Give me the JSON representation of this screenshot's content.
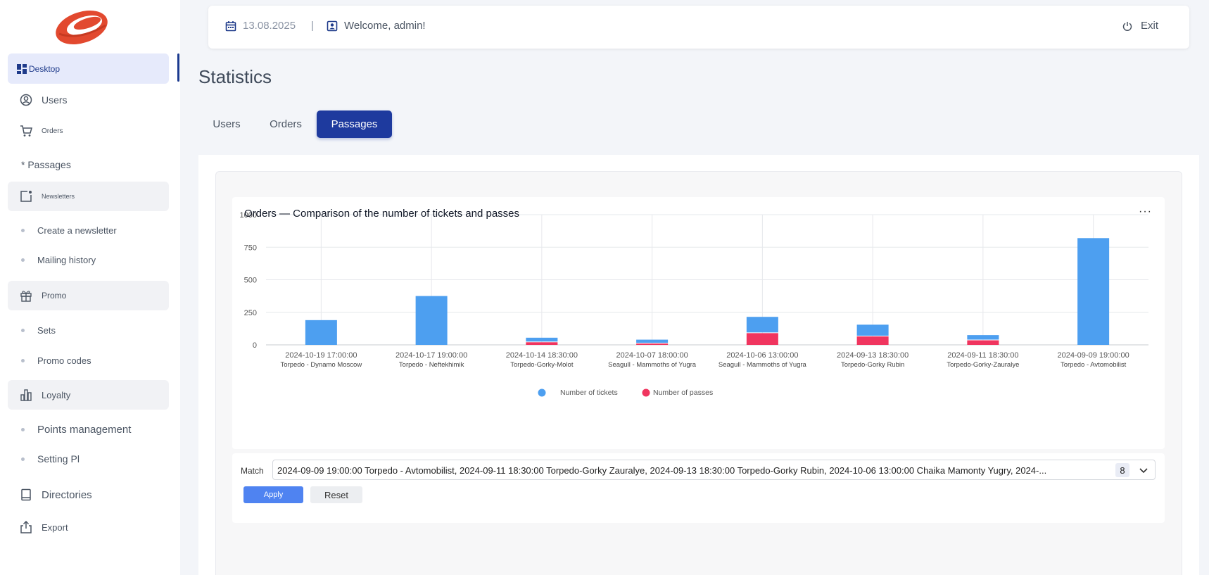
{
  "colors": {
    "accent": "#1e3a9e",
    "tickets": "#4d9ff0",
    "passes": "#f0355f",
    "logo": "#e2492f",
    "apply": "#4f83f1"
  },
  "sidebar": {
    "logo_icon": "stadium-logo",
    "items": {
      "desktop": {
        "label": "Desktop",
        "icon": "dashboard-icon"
      },
      "users": {
        "label": "Users",
        "icon": "user-circle-icon"
      },
      "orders": {
        "label": "Orders",
        "icon": "cart-icon"
      },
      "passages": {
        "label": "* Passages"
      },
      "newsletters": {
        "label": "Newsletters",
        "icon": "newsletter-icon"
      },
      "create_newsletter": {
        "label": "Create a newsletter"
      },
      "mailing_history": {
        "label": "Mailing history"
      },
      "promo": {
        "label": "Promo",
        "icon": "gift-icon"
      },
      "sets": {
        "label": "Sets"
      },
      "promo_codes": {
        "label": "Promo codes"
      },
      "loyalty": {
        "label": "Loyalty",
        "icon": "bar-chart-icon"
      },
      "points_management": {
        "label": "Points management"
      },
      "setting_pl": {
        "label": "Setting Pl"
      },
      "directories": {
        "label": "Directories",
        "icon": "book-icon"
      },
      "export": {
        "label": "Export",
        "icon": "export-icon"
      }
    }
  },
  "header": {
    "date": "13.08.2025",
    "separator": "|",
    "welcome": "Welcome, admin!",
    "exit": "Exit"
  },
  "page": {
    "title": "Statistics",
    "tabs": [
      "Users",
      "Orders",
      "Passages"
    ],
    "active_tab": "Passages"
  },
  "chart_menu": "···",
  "chart_data": {
    "type": "bar",
    "stacked": true,
    "title": "Orders — Comparison of the number of tickets and passes",
    "categories": [
      [
        "2024-10-19 17:00:00",
        "Torpedo - Dynamo Moscow"
      ],
      [
        "2024-10-17 19:00:00",
        "Torpedo - Neftekhimik"
      ],
      [
        "2024-10-14 18:30:00",
        "Torpedo-Gorky-Molot"
      ],
      [
        "2024-10-07 18:00:00",
        "Seagull - Mammoths of Yugra"
      ],
      [
        "2024-10-06 13:00:00",
        "Seagull - Mammoths of Yugra"
      ],
      [
        "2024-09-13 18:30:00",
        "Torpedo-Gorky Rubin"
      ],
      [
        "2024-09-11 18:30:00",
        "Torpedo-Gorky-Zauralye"
      ],
      [
        "2024-09-09 19:00:00",
        "Torpedo - Avtomobilist"
      ]
    ],
    "series": [
      {
        "name": "Number of passes",
        "values": [
          0,
          0,
          20,
          10,
          90,
          65,
          35,
          0
        ]
      },
      {
        "name": "Number of tickets",
        "values": [
          190,
          375,
          35,
          30,
          125,
          90,
          40,
          820
        ]
      }
    ],
    "ylim": [
      0,
      1000
    ],
    "yticks": [
      0,
      250,
      500,
      750,
      1000
    ],
    "legend_position": "bottom",
    "grid": true
  },
  "filter": {
    "label": "Match",
    "value": "2024-09-09 19:00:00 Torpedo - Avtomobilist, 2024-09-11 18:30:00 Torpedo-Gorky Zauralye, 2024-09-13 18:30:00 Torpedo-Gorky Rubin, 2024-10-06 13:00:00 Chaika Mamonty Yugry, 2024-... 8",
    "count": "8",
    "apply": "Apply",
    "reset": "Reset"
  }
}
